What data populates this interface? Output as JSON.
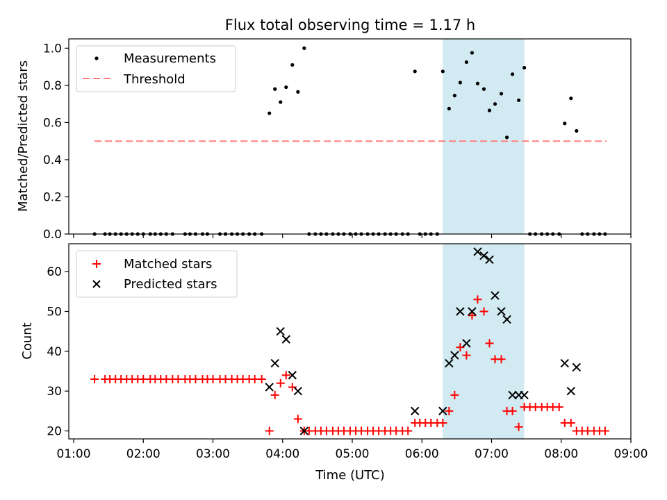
{
  "figure_title": "Flux total observing time = 1.17 h",
  "colors": {
    "highlight": "#add8e6",
    "threshold": "#ff7f7f",
    "measurement": "#000000",
    "matched": "#ff0000",
    "predicted": "#000000"
  },
  "chart_data": [
    {
      "type": "scatter",
      "title": "Flux total observing time = 1.17 h",
      "xlabel": "",
      "ylabel": "Matched/Predicted stars",
      "x_unit": "hours UTC",
      "xlim": [
        1.0,
        9.0
      ],
      "ylim": [
        0.0,
        1.05
      ],
      "yticks": [
        "0.0",
        "0.2",
        "0.4",
        "0.6",
        "0.8",
        "1.0"
      ],
      "ytick_values": [
        0.0,
        0.2,
        0.4,
        0.6,
        0.8,
        1.0
      ],
      "grid": false,
      "legend_position": "top-left",
      "highlight_span": [
        6.3,
        7.47
      ],
      "threshold": {
        "name": "Threshold",
        "y": 0.5,
        "x_range": [
          1.3,
          8.65
        ]
      },
      "series": [
        {
          "name": "Measurements",
          "marker": "dot",
          "points": [
            [
              1.3,
              0
            ],
            [
              1.45,
              0
            ],
            [
              1.52,
              0
            ],
            [
              1.6,
              0
            ],
            [
              1.68,
              0
            ],
            [
              1.76,
              0
            ],
            [
              1.84,
              0
            ],
            [
              1.92,
              0
            ],
            [
              2.0,
              0
            ],
            [
              2.1,
              0
            ],
            [
              2.17,
              0
            ],
            [
              2.25,
              0
            ],
            [
              2.33,
              0
            ],
            [
              2.42,
              0
            ],
            [
              2.6,
              0
            ],
            [
              2.67,
              0
            ],
            [
              2.75,
              0
            ],
            [
              2.85,
              0
            ],
            [
              2.92,
              0
            ],
            [
              3.1,
              0
            ],
            [
              3.18,
              0
            ],
            [
              3.27,
              0
            ],
            [
              3.35,
              0
            ],
            [
              3.43,
              0
            ],
            [
              3.52,
              0
            ],
            [
              3.6,
              0
            ],
            [
              3.7,
              0
            ],
            [
              3.81,
              0.65
            ],
            [
              3.89,
              0.78
            ],
            [
              3.97,
              0.71
            ],
            [
              4.05,
              0.79
            ],
            [
              4.14,
              0.91
            ],
            [
              4.22,
              0.765
            ],
            [
              4.31,
              1.0
            ],
            [
              4.38,
              0
            ],
            [
              4.47,
              0
            ],
            [
              4.55,
              0
            ],
            [
              4.63,
              0
            ],
            [
              4.72,
              0
            ],
            [
              4.8,
              0
            ],
            [
              4.88,
              0
            ],
            [
              4.97,
              0
            ],
            [
              5.05,
              0
            ],
            [
              5.13,
              0
            ],
            [
              5.22,
              0
            ],
            [
              5.3,
              0
            ],
            [
              5.38,
              0
            ],
            [
              5.47,
              0
            ],
            [
              5.55,
              0
            ],
            [
              5.63,
              0
            ],
            [
              5.72,
              0
            ],
            [
              5.8,
              0
            ],
            [
              5.9,
              0.875
            ],
            [
              5.97,
              0
            ],
            [
              6.05,
              0
            ],
            [
              6.13,
              0
            ],
            [
              6.22,
              0
            ],
            [
              6.3,
              0.875
            ],
            [
              6.39,
              0.675
            ],
            [
              6.47,
              0.745
            ],
            [
              6.55,
              0.815
            ],
            [
              6.64,
              0.925
            ],
            [
              6.72,
              0.975
            ],
            [
              6.8,
              0.81
            ],
            [
              6.89,
              0.78
            ],
            [
              6.97,
              0.665
            ],
            [
              7.05,
              0.7
            ],
            [
              7.14,
              0.755
            ],
            [
              7.22,
              0.52
            ],
            [
              7.3,
              0.86
            ],
            [
              7.39,
              0.72
            ],
            [
              7.47,
              0.895
            ],
            [
              7.55,
              0
            ],
            [
              7.63,
              0
            ],
            [
              7.72,
              0
            ],
            [
              7.8,
              0
            ],
            [
              7.88,
              0
            ],
            [
              7.97,
              0
            ],
            [
              8.05,
              0.595
            ],
            [
              8.14,
              0.73
            ],
            [
              8.22,
              0.555
            ],
            [
              8.3,
              0
            ],
            [
              8.38,
              0
            ],
            [
              8.47,
              0
            ],
            [
              8.55,
              0
            ],
            [
              8.63,
              0
            ]
          ]
        }
      ]
    },
    {
      "type": "scatter",
      "title": "",
      "xlabel": "Time (UTC)",
      "ylabel": "Count",
      "x_unit": "hours UTC",
      "xlim": [
        0.93,
        9.0
      ],
      "ylim": [
        18,
        67
      ],
      "xticks": [
        "01:00",
        "02:00",
        "03:00",
        "04:00",
        "05:00",
        "06:00",
        "07:00",
        "08:00",
        "09:00"
      ],
      "xtick_values": [
        1,
        2,
        3,
        4,
        5,
        6,
        7,
        8,
        9
      ],
      "yticks": [
        "20",
        "30",
        "40",
        "50",
        "60"
      ],
      "ytick_values": [
        20,
        30,
        40,
        50,
        60
      ],
      "grid": false,
      "legend_position": "top-left",
      "highlight_span": [
        6.3,
        7.47
      ],
      "series": [
        {
          "name": "Matched stars",
          "marker": "plus",
          "points": [
            [
              1.3,
              33
            ],
            [
              1.45,
              33
            ],
            [
              1.52,
              33
            ],
            [
              1.6,
              33
            ],
            [
              1.68,
              33
            ],
            [
              1.76,
              33
            ],
            [
              1.84,
              33
            ],
            [
              1.92,
              33
            ],
            [
              2.0,
              33
            ],
            [
              2.1,
              33
            ],
            [
              2.17,
              33
            ],
            [
              2.25,
              33
            ],
            [
              2.33,
              33
            ],
            [
              2.42,
              33
            ],
            [
              2.5,
              33
            ],
            [
              2.6,
              33
            ],
            [
              2.67,
              33
            ],
            [
              2.75,
              33
            ],
            [
              2.85,
              33
            ],
            [
              2.92,
              33
            ],
            [
              3.0,
              33
            ],
            [
              3.1,
              33
            ],
            [
              3.18,
              33
            ],
            [
              3.27,
              33
            ],
            [
              3.35,
              33
            ],
            [
              3.43,
              33
            ],
            [
              3.52,
              33
            ],
            [
              3.6,
              33
            ],
            [
              3.7,
              33
            ],
            [
              3.81,
              20
            ],
            [
              3.89,
              29
            ],
            [
              3.97,
              32
            ],
            [
              4.05,
              34
            ],
            [
              4.14,
              31
            ],
            [
              4.22,
              23
            ],
            [
              4.31,
              20
            ],
            [
              4.38,
              20
            ],
            [
              4.47,
              20
            ],
            [
              4.55,
              20
            ],
            [
              4.63,
              20
            ],
            [
              4.72,
              20
            ],
            [
              4.8,
              20
            ],
            [
              4.88,
              20
            ],
            [
              4.97,
              20
            ],
            [
              5.05,
              20
            ],
            [
              5.13,
              20
            ],
            [
              5.22,
              20
            ],
            [
              5.3,
              20
            ],
            [
              5.38,
              20
            ],
            [
              5.47,
              20
            ],
            [
              5.55,
              20
            ],
            [
              5.63,
              20
            ],
            [
              5.72,
              20
            ],
            [
              5.8,
              20
            ],
            [
              5.9,
              22
            ],
            [
              5.97,
              22
            ],
            [
              6.05,
              22
            ],
            [
              6.13,
              22
            ],
            [
              6.22,
              22
            ],
            [
              6.3,
              22
            ],
            [
              6.39,
              25
            ],
            [
              6.47,
              29
            ],
            [
              6.55,
              41
            ],
            [
              6.64,
              39
            ],
            [
              6.72,
              49
            ],
            [
              6.8,
              53
            ],
            [
              6.89,
              50
            ],
            [
              6.97,
              42
            ],
            [
              7.05,
              38
            ],
            [
              7.14,
              38
            ],
            [
              7.22,
              25
            ],
            [
              7.3,
              25
            ],
            [
              7.39,
              21
            ],
            [
              7.47,
              26
            ],
            [
              7.55,
              26
            ],
            [
              7.63,
              26
            ],
            [
              7.72,
              26
            ],
            [
              7.8,
              26
            ],
            [
              7.88,
              26
            ],
            [
              7.97,
              26
            ],
            [
              8.05,
              22
            ],
            [
              8.14,
              22
            ],
            [
              8.22,
              20
            ],
            [
              8.3,
              20
            ],
            [
              8.38,
              20
            ],
            [
              8.47,
              20
            ],
            [
              8.55,
              20
            ],
            [
              8.63,
              20
            ]
          ]
        },
        {
          "name": "Predicted stars",
          "marker": "cross",
          "points": [
            [
              3.81,
              31
            ],
            [
              3.89,
              37
            ],
            [
              3.97,
              45
            ],
            [
              4.05,
              43
            ],
            [
              4.14,
              34
            ],
            [
              4.22,
              30
            ],
            [
              4.31,
              20
            ],
            [
              5.9,
              25
            ],
            [
              6.3,
              25
            ],
            [
              6.39,
              37
            ],
            [
              6.47,
              39
            ],
            [
              6.55,
              50
            ],
            [
              6.64,
              42
            ],
            [
              6.72,
              50
            ],
            [
              6.8,
              65
            ],
            [
              6.89,
              64
            ],
            [
              6.97,
              63
            ],
            [
              7.05,
              54
            ],
            [
              7.14,
              50
            ],
            [
              7.22,
              48
            ],
            [
              7.3,
              29
            ],
            [
              7.39,
              29
            ],
            [
              7.47,
              29
            ],
            [
              8.05,
              37
            ],
            [
              8.14,
              30
            ],
            [
              8.22,
              36
            ]
          ]
        }
      ]
    }
  ]
}
